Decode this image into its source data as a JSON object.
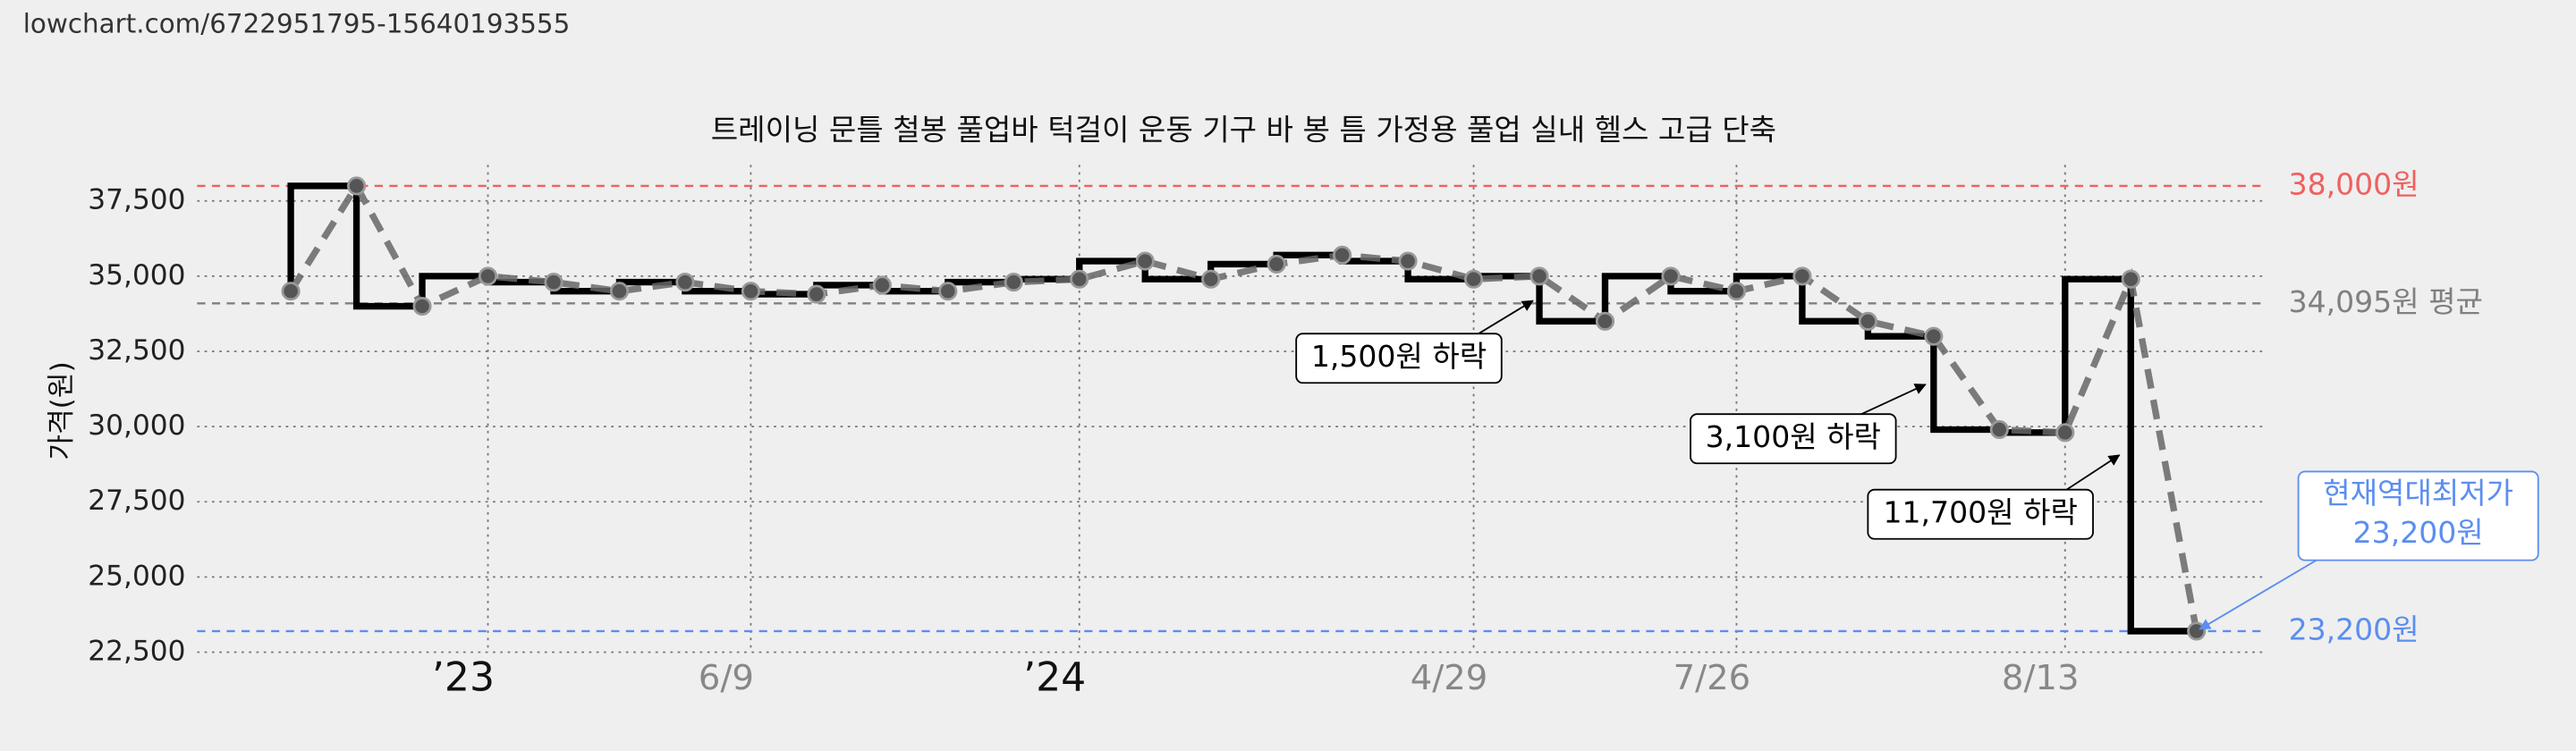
{
  "header": {
    "url": "lowchart.com/6722951795-15640193555"
  },
  "chart_data": {
    "type": "step",
    "title": "트레이닝 문틀 철봉 풀업바 턱걸이 운동 기구 바 봉 틈 가정용 풀업 실내 헬스 고급 단축",
    "y_label": "가격(원)",
    "categories": [
      null,
      null,
      null,
      "’23",
      null,
      null,
      null,
      "6/9",
      null,
      null,
      null,
      null,
      "’24",
      null,
      null,
      null,
      null,
      null,
      "4/29",
      null,
      null,
      null,
      "7/26",
      null,
      null,
      null,
      null,
      "8/13",
      null,
      null
    ],
    "values": [
      34500,
      38000,
      34000,
      35000,
      34800,
      34500,
      34800,
      34500,
      34400,
      34700,
      34500,
      34800,
      34900,
      35500,
      34900,
      35400,
      35700,
      35500,
      34900,
      35000,
      33500,
      35000,
      34500,
      35000,
      33500,
      33000,
      29900,
      29800,
      34900,
      23200
    ],
    "color": "#000000",
    "ylim": [
      22500,
      38700
    ],
    "yticks": [
      {
        "value": 22500,
        "label": "22,500"
      },
      {
        "value": 25000,
        "label": "25,000"
      },
      {
        "value": 27500,
        "label": "27,500"
      },
      {
        "value": 30000,
        "label": "30,000"
      },
      {
        "value": 32500,
        "label": "32,500"
      },
      {
        "value": 35000,
        "label": "35,000"
      },
      {
        "value": 37500,
        "label": "37,500"
      }
    ],
    "grid": true,
    "reference_lines": [
      {
        "value": 38000,
        "label": "38,000원",
        "color": "#f06060"
      },
      {
        "value": 34095,
        "label": "34,095원 평균",
        "color": "#808080"
      },
      {
        "value": 23200,
        "label": "23,200원",
        "color": "#5b8ef0"
      }
    ],
    "annotations": [
      "1,500원 하락",
      "3,100원 하락",
      "11,700원 하락",
      "현재역대최저가\n23,200원"
    ]
  }
}
